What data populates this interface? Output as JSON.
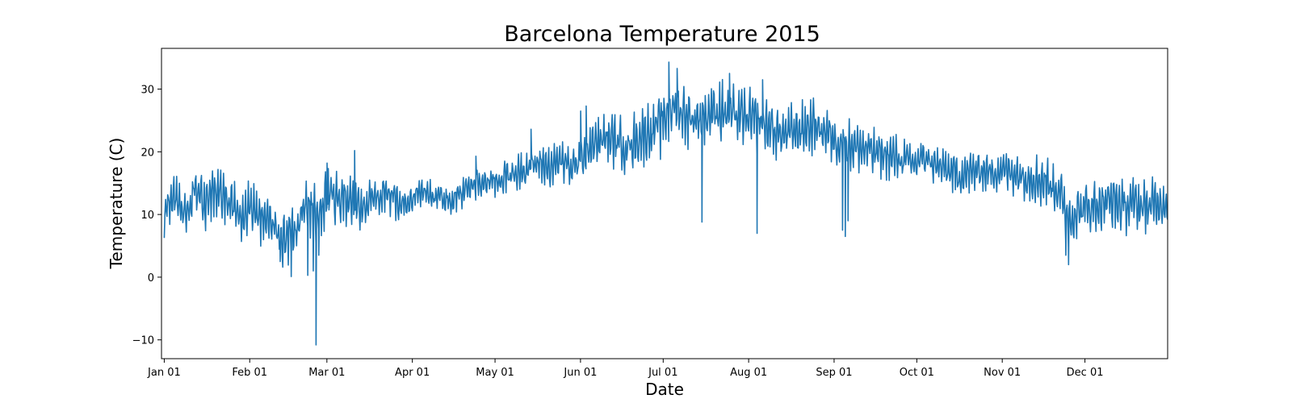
{
  "chart_data": {
    "type": "line",
    "title": "Barcelona Temperature 2015",
    "xlabel": "Date",
    "ylabel": "Temperature (C)",
    "x_range": [
      "2014-12-31",
      "2015-12-31"
    ],
    "ylim": [
      -13,
      36.5
    ],
    "y_ticks": [
      -10,
      0,
      10,
      20,
      30
    ],
    "y_tick_labels": [
      "−10",
      "0",
      "10",
      "20",
      "30"
    ],
    "x_ticks": [
      {
        "date": "2015-01-01",
        "label": "Jan 01"
      },
      {
        "date": "2015-02-01",
        "label": "Feb 01"
      },
      {
        "date": "2015-03-01",
        "label": "Mar 01"
      },
      {
        "date": "2015-04-01",
        "label": "Apr 01"
      },
      {
        "date": "2015-05-01",
        "label": "May 01"
      },
      {
        "date": "2015-06-01",
        "label": "Jun 01"
      },
      {
        "date": "2015-07-01",
        "label": "Jul 01"
      },
      {
        "date": "2015-08-01",
        "label": "Aug 01"
      },
      {
        "date": "2015-09-01",
        "label": "Sep 01"
      },
      {
        "date": "2015-10-01",
        "label": "Oct 01"
      },
      {
        "date": "2015-11-01",
        "label": "Nov 01"
      },
      {
        "date": "2015-12-01",
        "label": "Dec 01"
      }
    ],
    "grid": false,
    "series_color": "#1f77b4",
    "series": [
      {
        "values": [
          [
            "2015-01-01",
            9.5
          ],
          [
            "2015-01-05",
            13
          ],
          [
            "2015-01-08",
            10
          ],
          [
            "2015-01-12",
            13.5
          ],
          [
            "2015-01-16",
            11.5
          ],
          [
            "2015-01-20",
            14
          ],
          [
            "2015-01-24",
            12
          ],
          [
            "2015-01-28",
            10
          ],
          [
            "2015-02-01",
            10.5
          ],
          [
            "2015-02-05",
            9
          ],
          [
            "2015-02-09",
            8
          ],
          [
            "2015-02-13",
            6
          ],
          [
            "2015-02-17",
            6.5
          ],
          [
            "2015-02-19",
            9
          ],
          [
            "2015-02-21",
            11.5
          ],
          [
            "2015-02-24",
            10
          ],
          [
            "2015-02-26",
            10
          ],
          [
            "2015-02-28",
            12
          ],
          [
            "2015-03-03",
            13
          ],
          [
            "2015-03-06",
            12.5
          ],
          [
            "2015-03-10",
            12
          ],
          [
            "2015-03-14",
            10.5
          ],
          [
            "2015-03-18",
            12.5
          ],
          [
            "2015-03-22",
            13
          ],
          [
            "2015-03-26",
            12
          ],
          [
            "2015-03-30",
            11.5
          ],
          [
            "2015-04-03",
            13.5
          ],
          [
            "2015-04-07",
            13
          ],
          [
            "2015-04-11",
            12.5
          ],
          [
            "2015-04-15",
            12
          ],
          [
            "2015-04-19",
            13.5
          ],
          [
            "2015-04-23",
            14.5
          ],
          [
            "2015-04-27",
            15
          ],
          [
            "2015-05-01",
            15
          ],
          [
            "2015-05-05",
            16
          ],
          [
            "2015-05-09",
            16.5
          ],
          [
            "2015-05-13",
            17.5
          ],
          [
            "2015-05-17",
            18
          ],
          [
            "2015-05-21",
            17.5
          ],
          [
            "2015-05-25",
            18.5
          ],
          [
            "2015-05-29",
            17
          ],
          [
            "2015-06-02",
            19.5
          ],
          [
            "2015-06-06",
            21
          ],
          [
            "2015-06-10",
            22
          ],
          [
            "2015-06-14",
            21.5
          ],
          [
            "2015-06-18",
            20.5
          ],
          [
            "2015-06-22",
            22
          ],
          [
            "2015-06-26",
            23
          ],
          [
            "2015-06-30",
            24
          ],
          [
            "2015-07-04",
            27
          ],
          [
            "2015-07-08",
            26
          ],
          [
            "2015-07-12",
            25
          ],
          [
            "2015-07-16",
            25.5
          ],
          [
            "2015-07-20",
            26.5
          ],
          [
            "2015-07-24",
            26
          ],
          [
            "2015-07-28",
            25.5
          ],
          [
            "2015-08-01",
            25
          ],
          [
            "2015-08-05",
            24.5
          ],
          [
            "2015-08-09",
            23.5
          ],
          [
            "2015-08-13",
            22.5
          ],
          [
            "2015-08-17",
            23
          ],
          [
            "2015-08-21",
            23.5
          ],
          [
            "2015-08-25",
            24
          ],
          [
            "2015-08-29",
            23
          ],
          [
            "2015-09-02",
            21.5
          ],
          [
            "2015-09-06",
            21
          ],
          [
            "2015-09-10",
            20.5
          ],
          [
            "2015-09-14",
            20
          ],
          [
            "2015-09-18",
            19.5
          ],
          [
            "2015-09-22",
            19
          ],
          [
            "2015-09-26",
            18.5
          ],
          [
            "2015-09-30",
            18
          ],
          [
            "2015-10-04",
            19
          ],
          [
            "2015-10-08",
            17.5
          ],
          [
            "2015-10-12",
            17
          ],
          [
            "2015-10-16",
            16
          ],
          [
            "2015-10-20",
            16.5
          ],
          [
            "2015-10-24",
            17
          ],
          [
            "2015-10-28",
            16.5
          ],
          [
            "2015-11-01",
            17
          ],
          [
            "2015-11-05",
            16.5
          ],
          [
            "2015-11-09",
            16
          ],
          [
            "2015-11-13",
            15.5
          ],
          [
            "2015-11-17",
            15
          ],
          [
            "2015-11-21",
            14
          ],
          [
            "2015-11-25",
            9
          ],
          [
            "2015-11-29",
            10.5
          ],
          [
            "2015-12-03",
            11
          ],
          [
            "2015-12-07",
            11.5
          ],
          [
            "2015-12-11",
            12
          ],
          [
            "2015-12-15",
            11
          ],
          [
            "2015-12-19",
            11.5
          ],
          [
            "2015-12-23",
            11
          ],
          [
            "2015-12-27",
            11.5
          ],
          [
            "2015-12-31",
            12
          ]
        ],
        "amplitude": [
          [
            "2015-01-01",
            2.2
          ],
          [
            "2015-02-01",
            2.8
          ],
          [
            "2015-03-01",
            2.8
          ],
          [
            "2015-04-01",
            1.5
          ],
          [
            "2015-05-01",
            1.6
          ],
          [
            "2015-06-01",
            2.2
          ],
          [
            "2015-07-01",
            3.2
          ],
          [
            "2015-08-01",
            3.0
          ],
          [
            "2015-09-01",
            2.6
          ],
          [
            "2015-10-01",
            2.2
          ],
          [
            "2015-11-01",
            2.0
          ],
          [
            "2015-11-22",
            2.8
          ],
          [
            "2015-12-31",
            2.6
          ]
        ],
        "extremes": [
          [
            "2015-02-12",
            2.5
          ],
          [
            "2015-02-16",
            0.1
          ],
          [
            "2015-02-22",
            0.3
          ],
          [
            "2015-02-24",
            1.0
          ],
          [
            "2015-02-25",
            -10.8
          ],
          [
            "2015-02-26",
            3.5
          ],
          [
            "2015-03-01",
            18.2
          ],
          [
            "2015-03-11",
            20.2
          ],
          [
            "2015-04-24",
            19.3
          ],
          [
            "2015-05-14",
            23.6
          ],
          [
            "2015-06-01",
            26.5
          ],
          [
            "2015-06-03",
            27.3
          ],
          [
            "2015-07-03",
            34.3
          ],
          [
            "2015-07-06",
            33.3
          ],
          [
            "2015-07-15",
            9.0
          ],
          [
            "2015-07-15",
            8.8
          ],
          [
            "2015-07-25",
            32.5
          ],
          [
            "2015-08-04",
            7.0
          ],
          [
            "2015-08-04",
            10.0
          ],
          [
            "2015-08-06",
            31.5
          ],
          [
            "2015-09-04",
            7.5
          ],
          [
            "2015-09-05",
            6.5
          ],
          [
            "2015-09-06",
            9.0
          ],
          [
            "2015-11-24",
            3.5
          ],
          [
            "2015-11-25",
            2.0
          ]
        ]
      }
    ]
  }
}
